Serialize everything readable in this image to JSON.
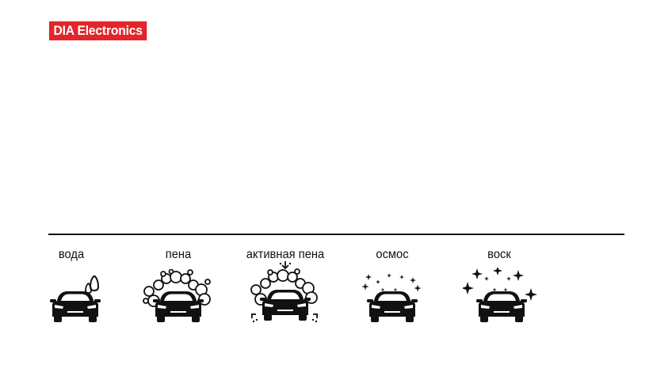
{
  "brand": {
    "name": "DIA Electronics",
    "color": "#e3262b"
  },
  "modes": [
    {
      "label": "вода",
      "icon": "car-water-drop-icon"
    },
    {
      "label": "пена",
      "icon": "car-foam-bubbles-icon"
    },
    {
      "label": "активная пена",
      "icon": "car-active-foam-icon"
    },
    {
      "label": "осмос",
      "icon": "car-osmosis-sparkles-icon"
    },
    {
      "label": "воск",
      "icon": "car-wax-big-sparkles-icon"
    }
  ]
}
